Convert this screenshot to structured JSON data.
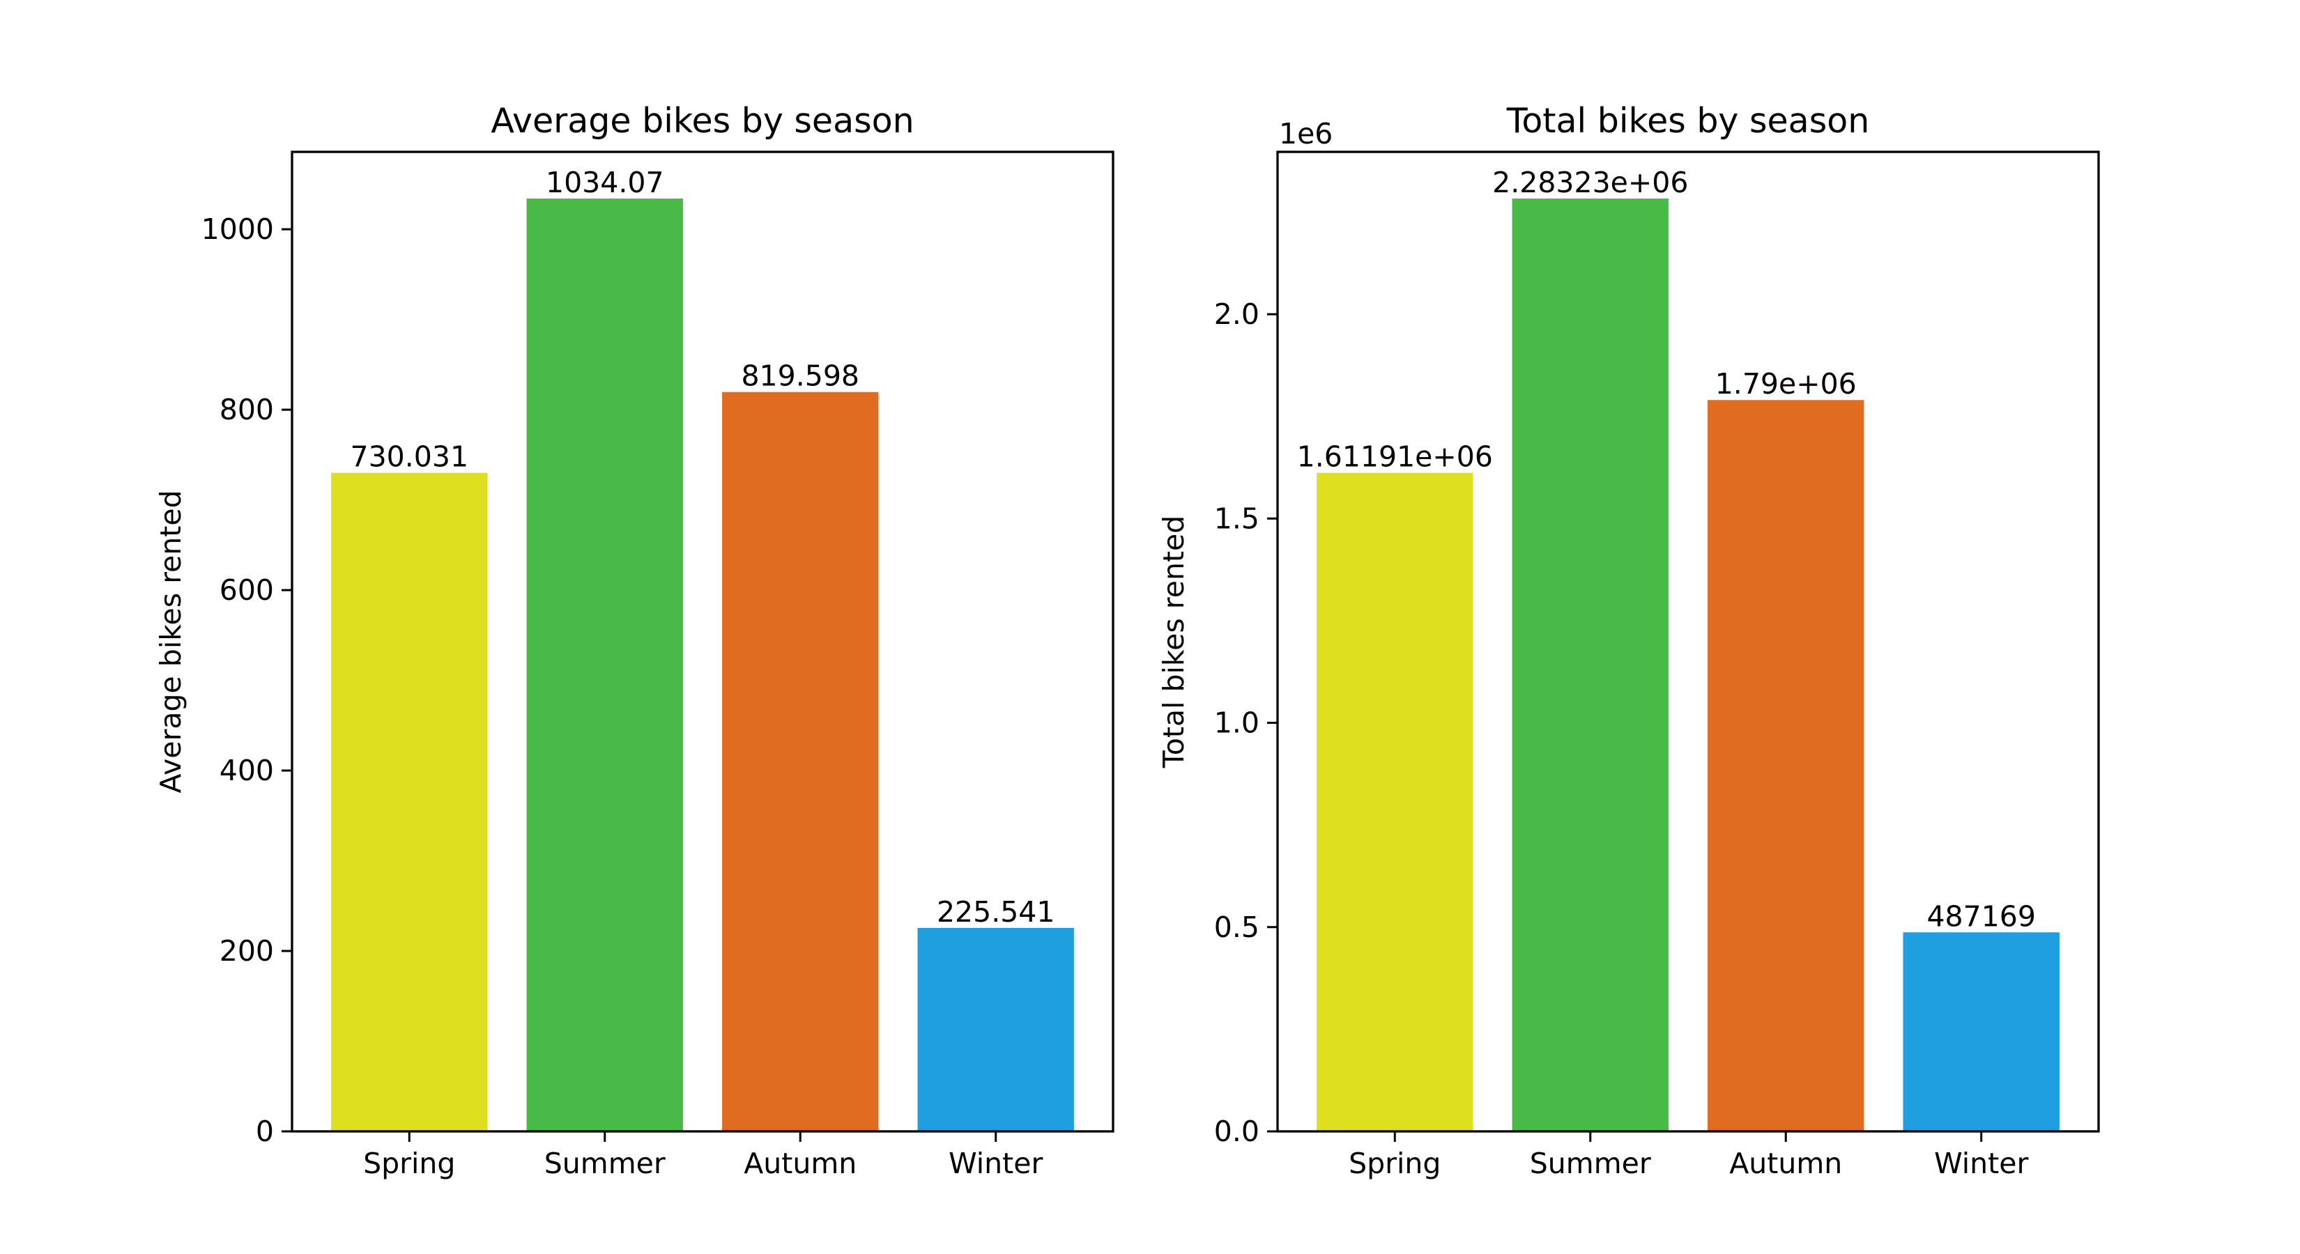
{
  "chart_data": [
    {
      "type": "bar",
      "title": "Average bikes by season",
      "xlabel": "",
      "ylabel": "Average bikes rented",
      "categories": [
        "Spring",
        "Summer",
        "Autumn",
        "Winter"
      ],
      "values": [
        730.031,
        1034.07,
        819.598,
        225.541
      ],
      "value_labels": [
        "730.031",
        "1034.07",
        "819.598",
        "225.541"
      ],
      "colors": [
        "#dee01f",
        "#49b947",
        "#e06c21",
        "#1f9fdf"
      ],
      "ylim": [
        0,
        1085.8
      ],
      "yticks": [
        0,
        200,
        400,
        600,
        800,
        1000
      ],
      "ytick_labels": [
        "0",
        "200",
        "400",
        "600",
        "800",
        "1000"
      ],
      "offset_text": "",
      "grid": false,
      "legend": "none"
    },
    {
      "type": "bar",
      "title": "Total bikes by season",
      "xlabel": "",
      "ylabel": "Total bikes rented",
      "categories": [
        "Spring",
        "Summer",
        "Autumn",
        "Winter"
      ],
      "values": [
        1611910,
        2283230,
        1790000,
        487169
      ],
      "value_labels": [
        "1.61191e+06",
        "2.28323e+06",
        "1.79e+06",
        "487169"
      ],
      "colors": [
        "#dee01f",
        "#49b947",
        "#e06c21",
        "#1f9fdf"
      ],
      "ylim": [
        0,
        2397392
      ],
      "yticks": [
        0,
        500000,
        1000000,
        1500000,
        2000000
      ],
      "ytick_labels": [
        "0.0",
        "0.5",
        "1.0",
        "1.5",
        "2.0"
      ],
      "offset_text": "1e6",
      "grid": false,
      "legend": "none"
    }
  ]
}
